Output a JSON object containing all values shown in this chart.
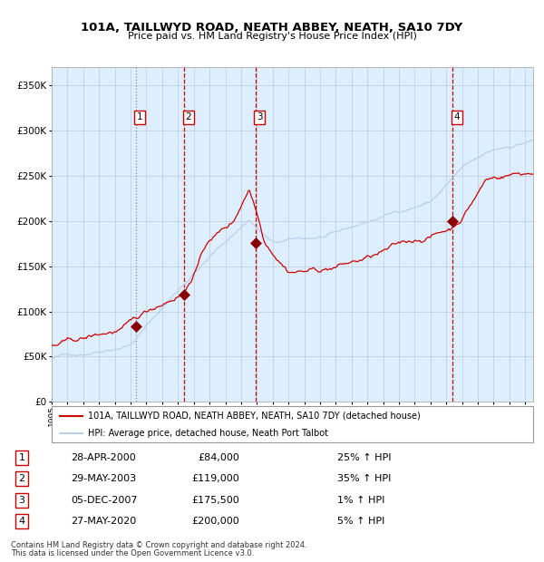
{
  "title": "101A, TAILLWYD ROAD, NEATH ABBEY, NEATH, SA10 7DY",
  "subtitle": "Price paid vs. HM Land Registry's House Price Index (HPI)",
  "legend_line1": "101A, TAILLWYD ROAD, NEATH ABBEY, NEATH, SA10 7DY (detached house)",
  "legend_line2": "HPI: Average price, detached house, Neath Port Talbot",
  "footer1": "Contains HM Land Registry data © Crown copyright and database right 2024.",
  "footer2": "This data is licensed under the Open Government Licence v3.0.",
  "transactions": [
    {
      "num": "1",
      "date": "28-APR-2000",
      "price": "£84,000",
      "pct": "25% ↑ HPI",
      "year": 2000.32,
      "price_val": 84000
    },
    {
      "num": "2",
      "date": "29-MAY-2003",
      "price": "£119,000",
      "pct": "35% ↑ HPI",
      "year": 2003.41,
      "price_val": 119000
    },
    {
      "num": "3",
      "date": "05-DEC-2007",
      "price": "£175,500",
      "pct": "1% ↑ HPI",
      "year": 2007.92,
      "price_val": 175500
    },
    {
      "num": "4",
      "date": "27-MAY-2020",
      "price": "£200,000",
      "pct": "5% ↑ HPI",
      "year": 2020.41,
      "price_val": 200000
    }
  ],
  "hpi_color": "#b8d0e8",
  "price_color": "#cc0000",
  "marker_color": "#8b0000",
  "bg_color": "#ddeeff",
  "grid_color": "#c0c8d8",
  "ylim": [
    0,
    370000
  ],
  "xlim_start": 1995.0,
  "xlim_end": 2025.5
}
